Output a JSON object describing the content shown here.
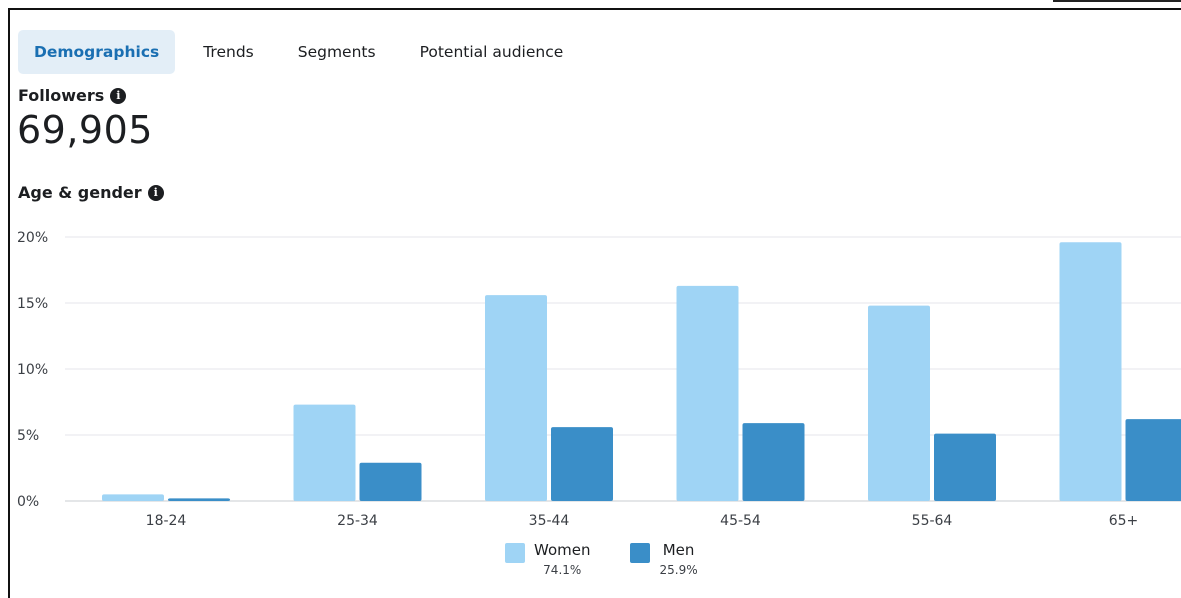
{
  "tabs": [
    {
      "label": "Demographics",
      "active": true
    },
    {
      "label": "Trends",
      "active": false
    },
    {
      "label": "Segments",
      "active": false
    },
    {
      "label": "Potential audience",
      "active": false
    }
  ],
  "followers": {
    "label": "Followers",
    "value": "69,905"
  },
  "section": {
    "label": "Age & gender"
  },
  "colors": {
    "women": "#9fd4f5",
    "men": "#3a8ec8",
    "grid": "#e4e6eb",
    "tab_active_bg": "#e3eef7",
    "tab_active_text": "#1a6fb2"
  },
  "chart_data": {
    "type": "bar",
    "categories": [
      "18-24",
      "25-34",
      "35-44",
      "45-54",
      "55-64",
      "65+"
    ],
    "series": [
      {
        "name": "Women",
        "values": [
          0.5,
          7.3,
          15.6,
          16.3,
          14.8,
          19.6
        ]
      },
      {
        "name": "Men",
        "values": [
          0.2,
          2.9,
          5.6,
          5.9,
          5.1,
          6.2
        ]
      }
    ],
    "yticks": [
      "0%",
      "5%",
      "10%",
      "15%",
      "20%"
    ],
    "ylim": [
      0,
      20
    ],
    "grid": true,
    "legend_position": "bottom-center"
  },
  "legend": [
    {
      "name": "Women",
      "pct": "74.1%"
    },
    {
      "name": "Men",
      "pct": "25.9%"
    }
  ]
}
